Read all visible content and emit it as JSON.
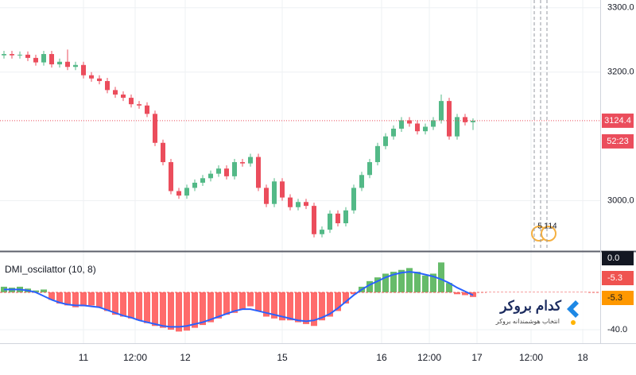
{
  "chart_data": [
    {
      "type": "candlestick",
      "open": [
        3226,
        3228,
        3226,
        3227,
        3222,
        3215,
        3228,
        3212,
        3216,
        3208,
        3211,
        3195,
        3190,
        3186,
        3172,
        3165,
        3160,
        3150,
        3148,
        3135,
        3090,
        3060,
        3015,
        3008,
        3020,
        3028,
        3035,
        3042,
        3050,
        3038,
        3060,
        3058,
        3068,
        3020,
        2995,
        3030,
        3005,
        2990,
        2998,
        2992,
        2948,
        2955,
        2980,
        2965,
        2985,
        3020,
        3040,
        3060,
        3085,
        3100,
        3112,
        3125,
        3120,
        3108,
        3115,
        3125,
        3155,
        3100,
        3130,
        3122
      ],
      "high": [
        3233,
        3233,
        3232,
        3232,
        3227,
        3233,
        3233,
        3221,
        3235,
        3216,
        3216,
        3200,
        3195,
        3191,
        3177,
        3170,
        3165,
        3155,
        3153,
        3140,
        3095,
        3065,
        3020,
        3025,
        3033,
        3040,
        3047,
        3055,
        3055,
        3065,
        3065,
        3073,
        3073,
        3025,
        3035,
        3035,
        3010,
        3003,
        3003,
        2997,
        2960,
        2985,
        2985,
        2990,
        3025,
        3045,
        3065,
        3090,
        3105,
        3117,
        3130,
        3130,
        3125,
        3120,
        3130,
        3165,
        3160,
        3135,
        3135,
        3128
      ],
      "low": [
        3221,
        3221,
        3221,
        3217,
        3210,
        3210,
        3207,
        3207,
        3203,
        3203,
        3190,
        3185,
        3181,
        3167,
        3160,
        3155,
        3145,
        3143,
        3130,
        3085,
        3055,
        3010,
        3003,
        3003,
        3015,
        3023,
        3030,
        3037,
        3033,
        3033,
        3053,
        3053,
        3015,
        2990,
        2990,
        3000,
        2985,
        2985,
        2987,
        2943,
        2943,
        2950,
        2960,
        2960,
        2980,
        3015,
        3035,
        3055,
        3080,
        3095,
        3107,
        3115,
        3103,
        3103,
        3110,
        3120,
        3095,
        3095,
        3117,
        3110
      ],
      "close": [
        3228,
        3226,
        3227,
        3222,
        3215,
        3228,
        3212,
        3216,
        3208,
        3211,
        3195,
        3190,
        3186,
        3172,
        3165,
        3160,
        3150,
        3148,
        3135,
        3090,
        3060,
        3015,
        3008,
        3020,
        3028,
        3035,
        3042,
        3050,
        3038,
        3060,
        3058,
        3068,
        3020,
        2995,
        3030,
        3005,
        2990,
        2998,
        2992,
        2948,
        2955,
        2980,
        2965,
        2985,
        3020,
        3040,
        3060,
        3085,
        3100,
        3112,
        3125,
        3120,
        3108,
        3115,
        3125,
        3155,
        3100,
        3130,
        3122,
        3124.4
      ],
      "up_color": "#53b987",
      "down_color": "#eb4d5c",
      "ylim": [
        2923,
        3312
      ],
      "yticks": [
        {
          "value": 3000,
          "label": "3000.0"
        },
        {
          "value": 3200,
          "label": "3200.0"
        },
        {
          "value": 3300,
          "label": "3300.0"
        }
      ],
      "xlim": [
        -0.5,
        75
      ],
      "xticks": [
        {
          "value": 10,
          "label": "11"
        },
        {
          "value": 16.5,
          "label": "12:00"
        },
        {
          "value": 22.8,
          "label": "12"
        },
        {
          "value": 35,
          "label": "15"
        },
        {
          "value": 47.5,
          "label": "16"
        },
        {
          "value": 53.5,
          "label": "12:00"
        },
        {
          "value": 59.5,
          "label": "17"
        },
        {
          "value": 66.3,
          "label": "12:00"
        },
        {
          "value": 72.8,
          "label": "18"
        }
      ],
      "grid": true,
      "price_line": 3124.4,
      "price_color": "#eb4d5c",
      "countdown": "52:23",
      "events": [
        "5",
        "1",
        "14"
      ]
    },
    {
      "type": "histogram",
      "title": "DMI_oscilattor (10, 8)",
      "histogram": [
        6,
        5,
        6,
        4,
        2,
        3,
        -8,
        -12,
        -14,
        -16,
        -15,
        -14,
        -16,
        -20,
        -24,
        -26,
        -28,
        -30,
        -33,
        -36,
        -38,
        -40,
        -42,
        -41,
        -38,
        -35,
        -32,
        -28,
        -24,
        -22,
        -18,
        -15,
        -20,
        -26,
        -28,
        -30,
        -30,
        -32,
        -34,
        -36,
        -30,
        -26,
        -20,
        -12,
        -2,
        6,
        12,
        16,
        20,
        22,
        24,
        26,
        22,
        18,
        20,
        32,
        10,
        -2,
        -3,
        -5
      ],
      "line": [
        3,
        3,
        3,
        2,
        0,
        -4,
        -8,
        -11,
        -13,
        -14,
        -14,
        -15,
        -16,
        -19,
        -22,
        -25,
        -27,
        -30,
        -32,
        -34,
        -36,
        -37,
        -37,
        -36,
        -34,
        -32,
        -29,
        -26,
        -23,
        -20,
        -18,
        -18,
        -20,
        -22,
        -24,
        -26,
        -28,
        -30,
        -31,
        -30,
        -27,
        -23,
        -17,
        -10,
        -3,
        3,
        8,
        12,
        16,
        19,
        21,
        22,
        21,
        19,
        17,
        14,
        10,
        5,
        1,
        -3
      ],
      "up_color": "#66bb6a",
      "down_color": "#ff6b6b",
      "line_color": "#2962ff",
      "ylim": [
        42.5,
        -54.5
      ],
      "yticks": [
        {
          "value": -40,
          "label": "-40.0"
        }
      ],
      "tags": [
        "0.0",
        "-5.3",
        "-5.3"
      ],
      "tag_colors": [
        "#131722",
        "#ef5350",
        "#ff9800"
      ]
    }
  ],
  "watermark": {
    "title": "کدام بروکر",
    "subtitle": "انتخاب هوشمندانه بروکر"
  }
}
